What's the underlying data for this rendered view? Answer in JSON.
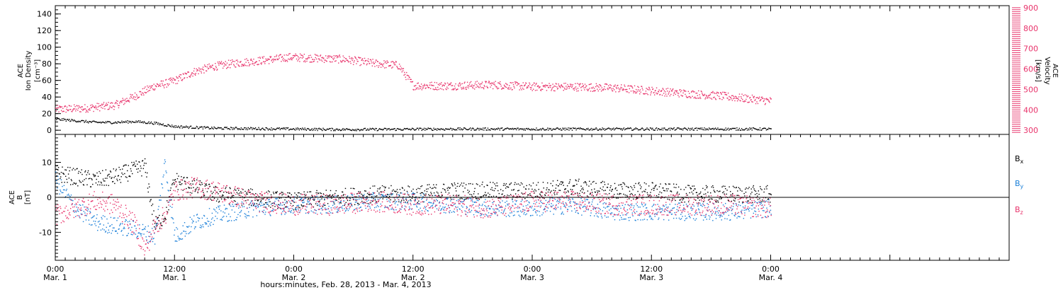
{
  "chart_data": [
    {
      "type": "scatter",
      "panel": "top",
      "x_unit": "hours since 0:00 Mar. 1",
      "xlim": [
        0,
        96
      ],
      "ylabel_left": [
        "ACE",
        "Ion Density",
        "[cm⁻³]"
      ],
      "ylabel_right": [
        "ACE",
        "Velocity",
        "[km/s]"
      ],
      "ylim_left": [
        -5,
        150
      ],
      "ylim_right": [
        280,
        910
      ],
      "yticks_left": [
        "0",
        "20",
        "40",
        "60",
        "80",
        "100",
        "120",
        "140"
      ],
      "yticks_right": [
        "300",
        "400",
        "500",
        "600",
        "700",
        "800",
        "900"
      ],
      "series": [
        {
          "name": "Velocity",
          "axis": "right",
          "color": "#e8336b",
          "x": [
            0,
            3,
            6,
            8,
            10,
            11,
            12,
            14,
            16,
            18,
            20,
            22,
            23.5,
            26,
            29,
            32,
            34.5,
            36,
            40,
            44,
            48,
            52,
            56,
            60,
            64,
            67,
            70,
            72
          ],
          "y": [
            405,
            410,
            425,
            470,
            520,
            530,
            545,
            590,
            615,
            630,
            640,
            650,
            660,
            655,
            650,
            630,
            620,
            520,
            520,
            525,
            515,
            515,
            510,
            495,
            480,
            470,
            455,
            445
          ],
          "spread": 20
        },
        {
          "name": "Ion Density",
          "axis": "left",
          "color": "#000000",
          "x": [
            0,
            2,
            4,
            6,
            8,
            10,
            12,
            16,
            20,
            24,
            28,
            32,
            36,
            40,
            44,
            48,
            52,
            56,
            60,
            64,
            68,
            72
          ],
          "y": [
            14,
            12,
            10,
            10,
            11,
            9,
            5,
            3,
            2.5,
            2,
            1.5,
            1.5,
            1.8,
            2,
            2,
            2,
            2,
            2,
            2,
            2,
            2,
            2
          ],
          "spread": 1.5
        }
      ]
    },
    {
      "type": "scatter",
      "panel": "bottom",
      "x_unit": "hours since 0:00 Mar. 1",
      "xlim": [
        0,
        96
      ],
      "ylabel": [
        "ACE",
        "B",
        "[nT]"
      ],
      "ylim": [
        -18,
        18
      ],
      "yticks": [
        "-10",
        "0",
        "10"
      ],
      "xticks": [
        {
          "x": 0,
          "time": "0:00",
          "date": "Mar. 1"
        },
        {
          "x": 12,
          "time": "12:00",
          "date": "Mar. 1"
        },
        {
          "x": 24,
          "time": "0:00",
          "date": "Mar. 2"
        },
        {
          "x": 36,
          "time": "12:00",
          "date": "Mar. 2"
        },
        {
          "x": 48,
          "time": "0:00",
          "date": "Mar. 3"
        },
        {
          "x": 60,
          "time": "12:00",
          "date": "Mar. 3"
        },
        {
          "x": 72,
          "time": "0:00",
          "date": "Mar. 4"
        }
      ],
      "xlabel": "hours:minutes, Feb. 28, 2013 - Mar. 4, 2013",
      "series": [
        {
          "name": "Bx",
          "label_base": "B",
          "label_sub": "x",
          "color": "#000000",
          "x": [
            0,
            2,
            4,
            6,
            8,
            9,
            10,
            11,
            12,
            14,
            16,
            20,
            24,
            28,
            32,
            36,
            40,
            44,
            48,
            52,
            56,
            60,
            64,
            68,
            72
          ],
          "y": [
            7,
            6,
            5,
            6,
            8,
            9,
            -8,
            -5,
            5,
            3,
            1,
            0,
            -1,
            0,
            1,
            1,
            2,
            2,
            2,
            3,
            2,
            2,
            1,
            1,
            1
          ],
          "spread": 2.5
        },
        {
          "name": "By",
          "label_base": "B",
          "label_sub": "y",
          "color": "#1a7fd8",
          "x": [
            0,
            2,
            4,
            6,
            8,
            10,
            11,
            12,
            14,
            16,
            20,
            24,
            28,
            32,
            36,
            40,
            44,
            48,
            52,
            56,
            60,
            64,
            68,
            72
          ],
          "y": [
            5,
            -3,
            -7,
            -8,
            -9,
            -11,
            10,
            -11,
            -7,
            -5,
            -3,
            -2,
            -2,
            -1,
            -1,
            -2,
            -3,
            -3,
            -2,
            -4,
            -4,
            -4,
            -4,
            -3
          ],
          "spread": 2.5
        },
        {
          "name": "Bz",
          "label_base": "B",
          "label_sub": "z",
          "color": "#e8336b",
          "x": [
            0,
            2,
            4,
            6,
            8,
            9,
            10,
            11,
            12,
            14,
            16,
            20,
            24,
            28,
            32,
            36,
            40,
            44,
            48,
            52,
            56,
            60,
            64,
            68,
            72
          ],
          "y": [
            -5,
            -3,
            -1,
            -2,
            -8,
            -15,
            -8,
            -5,
            2,
            3,
            2,
            -1,
            -2,
            -2,
            -1,
            -2,
            -2,
            -3,
            -1,
            -1,
            -2,
            -2,
            -2,
            -2,
            -3
          ],
          "spread": 3
        }
      ]
    }
  ]
}
